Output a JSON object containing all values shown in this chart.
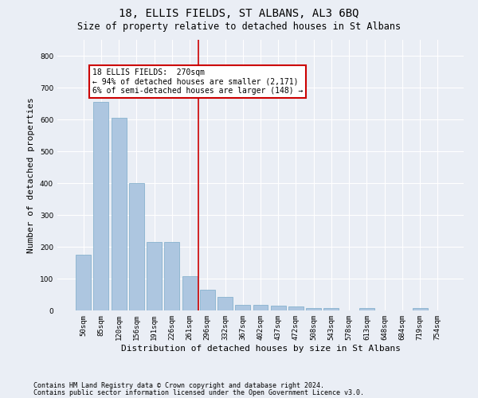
{
  "title": "18, ELLIS FIELDS, ST ALBANS, AL3 6BQ",
  "subtitle": "Size of property relative to detached houses in St Albans",
  "xlabel": "Distribution of detached houses by size in St Albans",
  "ylabel": "Number of detached properties",
  "categories": [
    "50sqm",
    "85sqm",
    "120sqm",
    "156sqm",
    "191sqm",
    "226sqm",
    "261sqm",
    "296sqm",
    "332sqm",
    "367sqm",
    "402sqm",
    "437sqm",
    "472sqm",
    "508sqm",
    "543sqm",
    "578sqm",
    "613sqm",
    "648sqm",
    "684sqm",
    "719sqm",
    "754sqm"
  ],
  "values": [
    175,
    655,
    605,
    400,
    215,
    215,
    107,
    65,
    42,
    18,
    17,
    15,
    13,
    8,
    8,
    1,
    8,
    1,
    1,
    7,
    0
  ],
  "bar_color": "#adc6e0",
  "bar_edge_color": "#7aaac8",
  "annotation_text": "18 ELLIS FIELDS:  270sqm\n← 94% of detached houses are smaller (2,171)\n6% of semi-detached houses are larger (148) →",
  "annotation_box_color": "#ffffff",
  "annotation_box_edge_color": "#cc0000",
  "vline_color": "#cc0000",
  "vline_index": 7,
  "ylim": [
    0,
    850
  ],
  "yticks": [
    0,
    100,
    200,
    300,
    400,
    500,
    600,
    700,
    800
  ],
  "footer1": "Contains HM Land Registry data © Crown copyright and database right 2024.",
  "footer2": "Contains public sector information licensed under the Open Government Licence v3.0.",
  "background_color": "#eaeef5",
  "axes_background": "#eaeef5",
  "grid_color": "#ffffff",
  "title_fontsize": 10,
  "subtitle_fontsize": 8.5,
  "tick_fontsize": 6.5,
  "ylabel_fontsize": 8,
  "xlabel_fontsize": 8,
  "annotation_fontsize": 7,
  "footer_fontsize": 6
}
